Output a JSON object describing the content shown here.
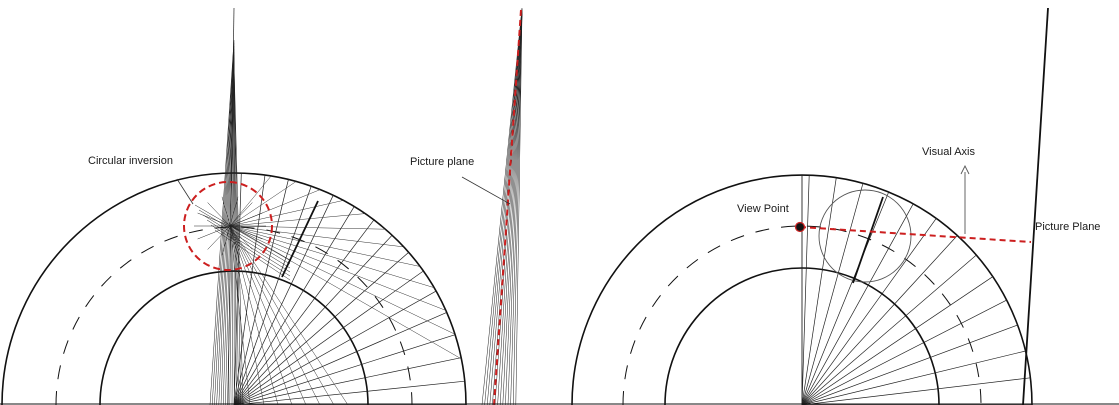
{
  "labels": {
    "circular_inversion": "Circular inversion",
    "picture_plane_left": "Picture plane",
    "visual_axis": "Visual Axis",
    "view_point": "View Point",
    "picture_plane_right": "Picture Plane"
  },
  "colors": {
    "ink": "#1a1a1a",
    "accent": "#cc1f1f"
  }
}
